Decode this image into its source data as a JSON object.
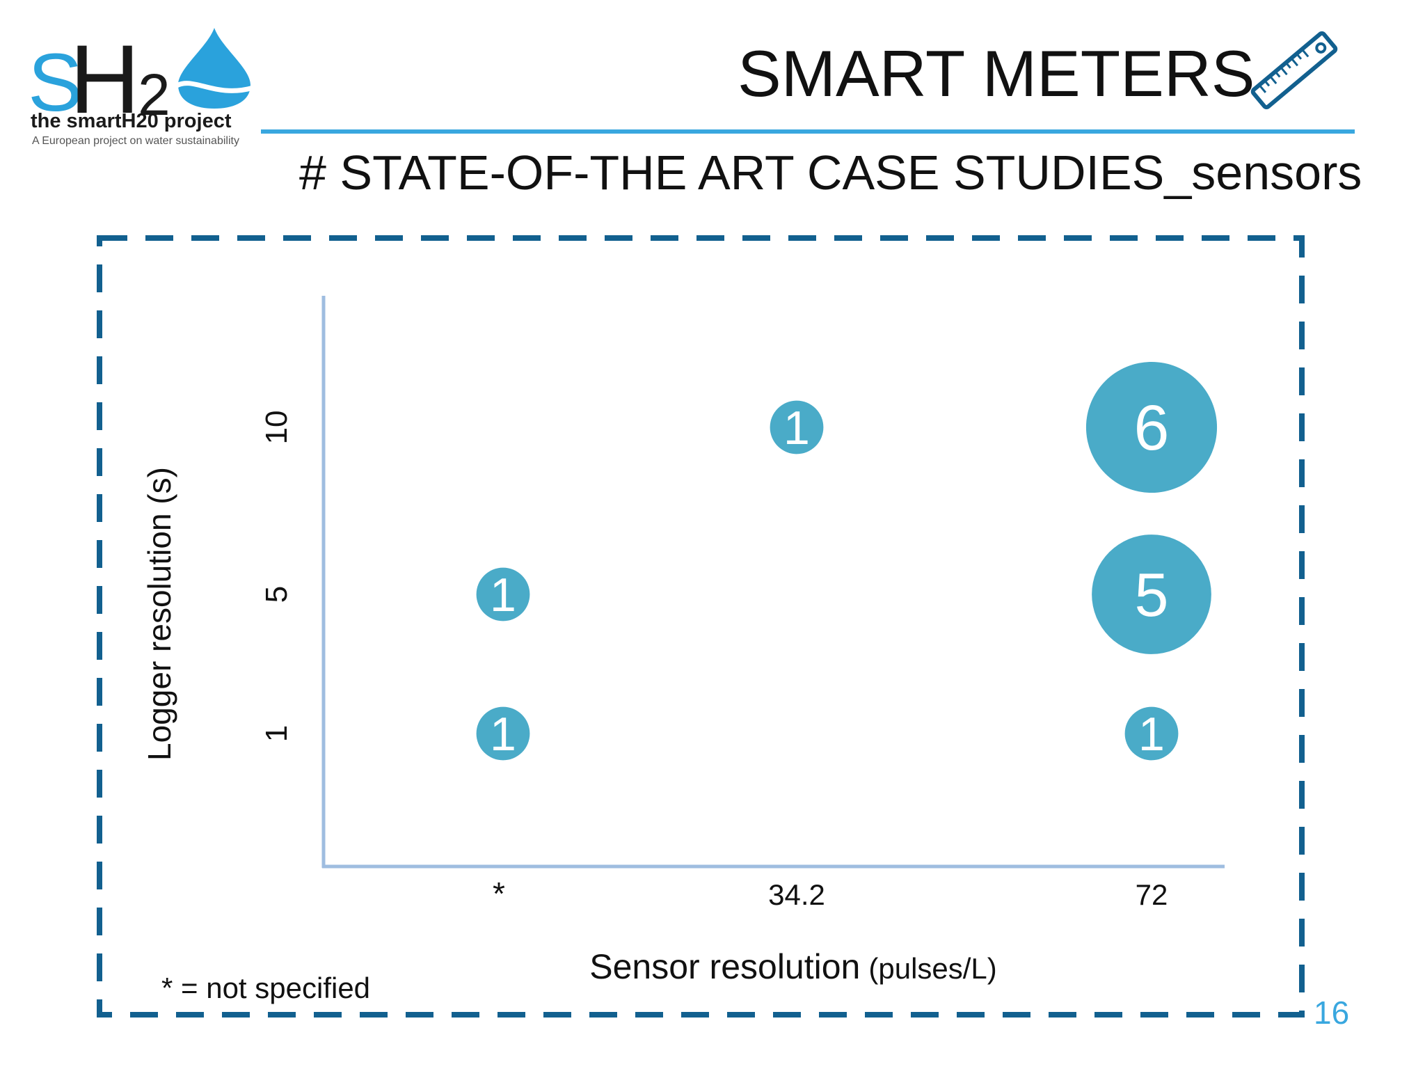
{
  "logo": {
    "letter_s": "S",
    "letter_h": "H",
    "letter_2": "2",
    "tagline": "the smartH20 project",
    "subtitle": "A European project on water sustainability"
  },
  "header": {
    "title": "SMART METERS",
    "subtitle": "# STATE-OF-THE ART CASE STUDIES_sensors",
    "icon": "ruler-icon"
  },
  "colors": {
    "accent": "#39a7df",
    "bubble": "#4aabc8",
    "frame": "#12608f",
    "axis": "#9fbde0"
  },
  "footnote": "* = not specified",
  "page_number": "16",
  "chart_data": {
    "type": "scatter",
    "title": "",
    "xlabel": "Sensor resolution",
    "xlabel_unit": "(pulses/L)",
    "ylabel": "Logger resolution (s)",
    "x_categories": [
      "*",
      "34.2",
      "72"
    ],
    "y_categories": [
      "1",
      "5",
      "10"
    ],
    "points": [
      {
        "x": "*",
        "y": "1",
        "count": 1
      },
      {
        "x": "*",
        "y": "5",
        "count": 1
      },
      {
        "x": "34.2",
        "y": "10",
        "count": 1
      },
      {
        "x": "72",
        "y": "10",
        "count": 6
      },
      {
        "x": "72",
        "y": "5",
        "count": 5
      },
      {
        "x": "72",
        "y": "1",
        "count": 1
      }
    ]
  }
}
